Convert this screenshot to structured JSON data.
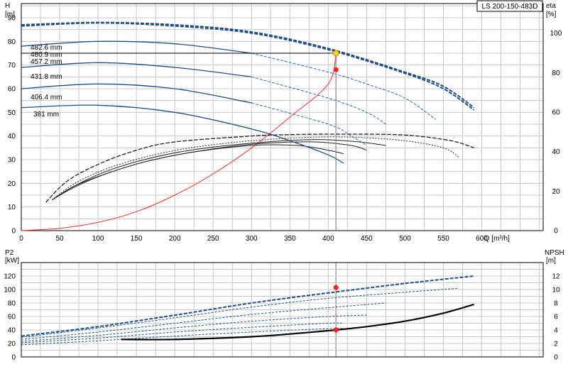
{
  "pump_label": "LS 200-150-483D",
  "colors": {
    "head": "#1e4f8a",
    "head_extension": "#2f6aa8",
    "efficiency": "#222222",
    "system_curve": "#ff2a2a",
    "duty_point": "#ff2020",
    "operating_point": "#ffd400",
    "grid": "#c8c8c8"
  },
  "chart_data": [
    {
      "type": "line",
      "name": "Head / efficiency curves",
      "title": "",
      "xlabel": "Q [m³/h]",
      "ylabel_left_top": "H",
      "ylabel_left_unit": "[m]",
      "ylabel_right_top": "eta",
      "ylabel_right_unit": "[%]",
      "x_range": [
        0,
        680
      ],
      "y_left_range": [
        0,
        96
      ],
      "y_right_range": [
        0,
        115
      ],
      "x_ticks": [
        0,
        50,
        100,
        150,
        200,
        250,
        300,
        350,
        400,
        450,
        500,
        550,
        600
      ],
      "y_left_ticks": [
        0,
        10,
        20,
        30,
        40,
        50,
        60,
        70,
        80,
        90
      ],
      "y_right_ticks": [
        0,
        20,
        40,
        60,
        80,
        100
      ],
      "grid": true,
      "head_curves": [
        {
          "label": "482.6 mm",
          "points": [
            [
              0,
              87
            ],
            [
              100,
              88
            ],
            [
              200,
              87
            ],
            [
              300,
              84
            ],
            [
              400,
              77
            ],
            [
              500,
              67
            ],
            [
              550,
              61
            ],
            [
              590,
              52
            ]
          ]
        },
        {
          "label": "480.9 mm",
          "points": [
            [
              0,
              86.5
            ],
            [
              100,
              87.8
            ],
            [
              200,
              86.5
            ],
            [
              300,
              83.5
            ],
            [
              400,
              76.5
            ],
            [
              500,
              66.5
            ],
            [
              550,
              60
            ],
            [
              590,
              51
            ]
          ]
        },
        {
          "label": "457.2 mm",
          "points": [
            [
              0,
              78
            ],
            [
              100,
              80
            ],
            [
              200,
              79
            ],
            [
              300,
              75
            ],
            [
              400,
              67
            ],
            [
              450,
              62
            ],
            [
              500,
              56
            ],
            [
              540,
              47
            ]
          ]
        },
        {
          "label": "431.8 mm",
          "points": [
            [
              0,
              69
            ],
            [
              100,
              71
            ],
            [
              200,
              69
            ],
            [
              300,
              65
            ],
            [
              400,
              56
            ],
            [
              450,
              50
            ],
            [
              475,
              45
            ]
          ]
        },
        {
          "label": "406.4 mm",
          "points": [
            [
              0,
              60
            ],
            [
              100,
              62
            ],
            [
              200,
              60
            ],
            [
              300,
              54
            ],
            [
              400,
              45
            ],
            [
              430,
              40
            ],
            [
              450,
              36
            ]
          ]
        },
        {
          "label": "381 mm",
          "points": [
            [
              0,
              52
            ],
            [
              100,
              53
            ],
            [
              200,
              50
            ],
            [
              300,
              43
            ],
            [
              350,
              38
            ],
            [
              400,
              32
            ],
            [
              420,
              28.5
            ]
          ]
        }
      ],
      "efficiency_curves": [
        {
          "points": [
            [
              32,
              12
            ],
            [
              60,
              21
            ],
            [
              100,
              28
            ],
            [
              150,
              34
            ],
            [
              200,
              37.5
            ],
            [
              300,
              40
            ],
            [
              350,
              40.6
            ],
            [
              420,
              40.8
            ],
            [
              500,
              40.4
            ],
            [
              560,
              38
            ],
            [
              590,
              35
            ]
          ]
        },
        {
          "points": [
            [
              40,
              13
            ],
            [
              70,
              20
            ],
            [
              110,
              26
            ],
            [
              160,
              31
            ],
            [
              220,
              35
            ],
            [
              300,
              38
            ],
            [
              380,
              39.5
            ],
            [
              440,
              39.4
            ],
            [
              500,
              38
            ],
            [
              550,
              35
            ],
            [
              570,
              31
            ]
          ]
        },
        {
          "points": [
            [
              40,
              13
            ],
            [
              70,
              19
            ],
            [
              110,
              25
            ],
            [
              160,
              30
            ],
            [
              220,
              34
            ],
            [
              300,
              37
            ],
            [
              380,
              38.5
            ],
            [
              440,
              37.5
            ],
            [
              475,
              36
            ]
          ]
        },
        {
          "points": [
            [
              40,
              13
            ],
            [
              70,
              19
            ],
            [
              110,
              24
            ],
            [
              160,
              29
            ],
            [
              220,
              33
            ],
            [
              300,
              36.5
            ],
            [
              380,
              37.5
            ],
            [
              430,
              36
            ],
            [
              450,
              34
            ]
          ]
        },
        {
          "points": [
            [
              40,
              13
            ],
            [
              70,
              18.5
            ],
            [
              110,
              24
            ],
            [
              160,
              29
            ],
            [
              220,
              33
            ],
            [
              300,
              36
            ],
            [
              360,
              36
            ],
            [
              400,
              34
            ],
            [
              420,
              32.5
            ]
          ]
        }
      ],
      "system_curve": {
        "points": [
          [
            0,
            0
          ],
          [
            50,
            1
          ],
          [
            100,
            3.5
          ],
          [
            150,
            8
          ],
          [
            200,
            15
          ],
          [
            250,
            24
          ],
          [
            300,
            35
          ],
          [
            350,
            48
          ],
          [
            400,
            62
          ],
          [
            410,
            75
          ]
        ]
      },
      "duty_point": {
        "Q": 410,
        "H": 75
      },
      "efficiency_point": {
        "Q": 410,
        "eta": 81.5
      }
    },
    {
      "type": "line",
      "name": "Power / NPSH curves",
      "title": "",
      "xlabel": "",
      "ylabel_left_top": "P2",
      "ylabel_left_unit": "[kW]",
      "ylabel_right_top": "NPSH",
      "ylabel_right_unit": "[m]",
      "x_range": [
        0,
        680
      ],
      "y_left_range": [
        0,
        140
      ],
      "y_right_range": [
        0,
        14
      ],
      "y_left_ticks": [
        0,
        20,
        40,
        60,
        80,
        100,
        120
      ],
      "y_right_ticks": [
        0,
        2,
        4,
        6,
        8,
        10,
        12
      ],
      "grid": true,
      "power_curves": [
        {
          "points": [
            [
              0,
              31
            ],
            [
              100,
              45
            ],
            [
              200,
              62
            ],
            [
              300,
              80
            ],
            [
              400,
              95
            ],
            [
              500,
              109
            ],
            [
              590,
              120
            ]
          ]
        },
        {
          "points": [
            [
              0,
              29
            ],
            [
              100,
              43
            ],
            [
              200,
              58
            ],
            [
              300,
              74
            ],
            [
              400,
              87
            ],
            [
              500,
              96
            ],
            [
              570,
              102
            ]
          ]
        },
        {
          "points": [
            [
              0,
              26
            ],
            [
              100,
              37
            ],
            [
              200,
              50
            ],
            [
              300,
              63
            ],
            [
              400,
              73
            ],
            [
              475,
              80
            ]
          ]
        },
        {
          "points": [
            [
              0,
              23
            ],
            [
              100,
              32
            ],
            [
              200,
              43
            ],
            [
              300,
              53
            ],
            [
              400,
              60
            ],
            [
              450,
              62
            ]
          ]
        },
        {
          "points": [
            [
              0,
              21
            ],
            [
              100,
              28
            ],
            [
              200,
              37
            ],
            [
              300,
              44
            ],
            [
              400,
              50
            ],
            [
              420,
              50
            ]
          ]
        },
        {
          "points": [
            [
              0,
              18
            ],
            [
              100,
              24
            ],
            [
              200,
              31
            ],
            [
              300,
              37
            ],
            [
              400,
              42
            ],
            [
              420,
              42
            ]
          ]
        }
      ],
      "npsh_curve": {
        "points": [
          [
            130,
            2.6
          ],
          [
            200,
            2.6
          ],
          [
            300,
            3.0
          ],
          [
            350,
            3.4
          ],
          [
            410,
            4.0
          ],
          [
            450,
            4.5
          ],
          [
            500,
            5.3
          ],
          [
            550,
            6.5
          ],
          [
            590,
            7.8
          ]
        ]
      },
      "power_point": {
        "Q": 410,
        "P2": 103
      },
      "npsh_point": {
        "Q": 410,
        "NPSH": 4.0
      }
    }
  ]
}
